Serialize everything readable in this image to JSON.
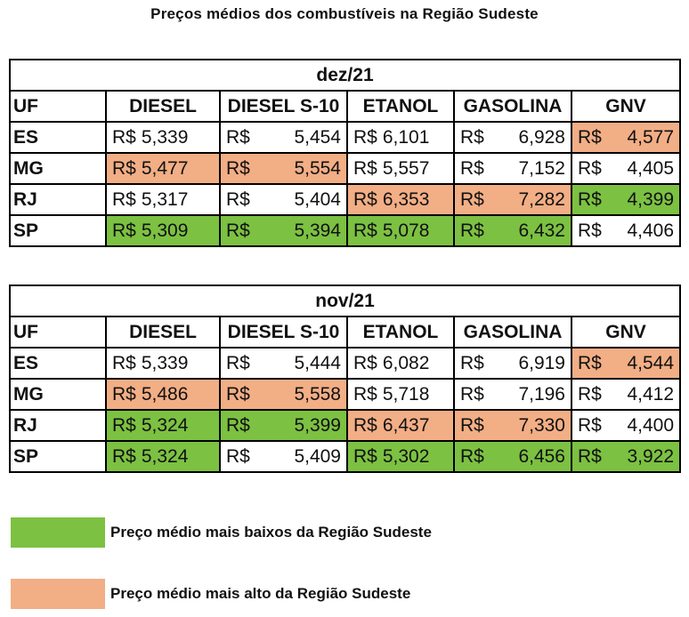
{
  "title": "Preços médios dos combustíveis na Região Sudeste",
  "colors": {
    "lowest": "#7cc142",
    "highest": "#f2ae85"
  },
  "tables": [
    {
      "period": "dez/21",
      "header": {
        "uf": "UF",
        "cols": [
          "DIESEL",
          "DIESEL S-10",
          "ETANOL",
          "GASOLINA",
          "GNV"
        ]
      },
      "rows": [
        {
          "uf": "ES",
          "cells": [
            {
              "cur": "R$",
              "num": "5,339",
              "hl": ""
            },
            {
              "cur": "R$",
              "num": "5,454",
              "hl": ""
            },
            {
              "cur": "R$",
              "num": "6,101",
              "hl": ""
            },
            {
              "cur": "R$",
              "num": "6,928",
              "hl": ""
            },
            {
              "cur": "R$",
              "num": "4,577",
              "hl": "highest"
            }
          ]
        },
        {
          "uf": "MG",
          "cells": [
            {
              "cur": "R$",
              "num": "5,477",
              "hl": "highest"
            },
            {
              "cur": "R$",
              "num": "5,554",
              "hl": "highest"
            },
            {
              "cur": "R$",
              "num": "5,557",
              "hl": ""
            },
            {
              "cur": "R$",
              "num": "7,152",
              "hl": ""
            },
            {
              "cur": "R$",
              "num": "4,405",
              "hl": ""
            }
          ]
        },
        {
          "uf": "RJ",
          "cells": [
            {
              "cur": "R$",
              "num": "5,317",
              "hl": ""
            },
            {
              "cur": "R$",
              "num": "5,404",
              "hl": ""
            },
            {
              "cur": "R$",
              "num": "6,353",
              "hl": "highest"
            },
            {
              "cur": "R$",
              "num": "7,282",
              "hl": "highest"
            },
            {
              "cur": "R$",
              "num": "4,399",
              "hl": "lowest"
            }
          ]
        },
        {
          "uf": "SP",
          "cells": [
            {
              "cur": "R$",
              "num": "5,309",
              "hl": "lowest"
            },
            {
              "cur": "R$",
              "num": "5,394",
              "hl": "lowest"
            },
            {
              "cur": "R$",
              "num": "5,078",
              "hl": "lowest"
            },
            {
              "cur": "R$",
              "num": "6,432",
              "hl": "lowest"
            },
            {
              "cur": "R$",
              "num": "4,406",
              "hl": ""
            }
          ]
        }
      ]
    },
    {
      "period": "nov/21",
      "header": {
        "uf": "UF",
        "cols": [
          "DIESEL",
          "DIESEL S-10",
          "ETANOL",
          "GASOLINA",
          "GNV"
        ]
      },
      "rows": [
        {
          "uf": "ES",
          "cells": [
            {
              "cur": "R$",
              "num": "5,339",
              "hl": ""
            },
            {
              "cur": "R$",
              "num": "5,444",
              "hl": ""
            },
            {
              "cur": "R$",
              "num": "6,082",
              "hl": ""
            },
            {
              "cur": "R$",
              "num": "6,919",
              "hl": ""
            },
            {
              "cur": "R$",
              "num": "4,544",
              "hl": "highest"
            }
          ]
        },
        {
          "uf": "MG",
          "cells": [
            {
              "cur": "R$",
              "num": "5,486",
              "hl": "highest"
            },
            {
              "cur": "R$",
              "num": "5,558",
              "hl": "highest"
            },
            {
              "cur": "R$",
              "num": "5,718",
              "hl": ""
            },
            {
              "cur": "R$",
              "num": "7,196",
              "hl": ""
            },
            {
              "cur": "R$",
              "num": "4,412",
              "hl": ""
            }
          ]
        },
        {
          "uf": "RJ",
          "cells": [
            {
              "cur": "R$",
              "num": "5,324",
              "hl": "lowest"
            },
            {
              "cur": "R$",
              "num": "5,399",
              "hl": "lowest"
            },
            {
              "cur": "R$",
              "num": "6,437",
              "hl": "highest"
            },
            {
              "cur": "R$",
              "num": "7,330",
              "hl": "highest"
            },
            {
              "cur": "R$",
              "num": "4,400",
              "hl": ""
            }
          ]
        },
        {
          "uf": "SP",
          "cells": [
            {
              "cur": "R$",
              "num": "5,324",
              "hl": "lowest"
            },
            {
              "cur": "R$",
              "num": "5,409",
              "hl": ""
            },
            {
              "cur": "R$",
              "num": "5,302",
              "hl": "lowest"
            },
            {
              "cur": "R$",
              "num": "6,456",
              "hl": "lowest"
            },
            {
              "cur": "R$",
              "num": "3,922",
              "hl": "lowest"
            }
          ]
        }
      ]
    }
  ],
  "legend": [
    {
      "key": "lowest",
      "text": "Preço médio mais baixos da Região Sudeste"
    },
    {
      "key": "highest",
      "text": "Preço médio mais alto da Região Sudeste"
    }
  ]
}
